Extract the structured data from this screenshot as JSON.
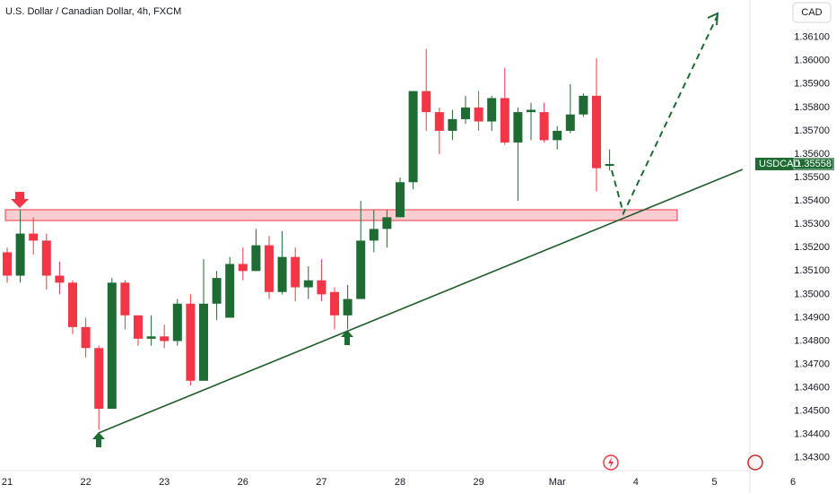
{
  "chart_data": {
    "type": "candlestick",
    "title": "U.S. Dollar / Canadian Dollar, 4h, FXCM",
    "currency": "CAD",
    "symbol": "USDCAD",
    "last_price": 1.35558,
    "up_color": "#1e6b34",
    "down_color": "#f23645",
    "grid": false,
    "categories": [
      "21",
      null,
      null,
      null,
      null,
      null,
      "22",
      null,
      null,
      null,
      null,
      null,
      "23",
      null,
      null,
      null,
      null,
      null,
      "26",
      null,
      null,
      null,
      null,
      null,
      "27",
      null,
      null,
      null,
      null,
      null,
      "28",
      null,
      null,
      null,
      null,
      null,
      "29",
      null,
      null,
      null,
      null,
      null,
      "Mar",
      null,
      null,
      null,
      null
    ],
    "future_categories": [
      "4",
      "5",
      "6"
    ],
    "open": [
      1.3518,
      1.3508,
      1.3526,
      1.3523,
      1.3508,
      1.3505,
      1.3486,
      1.3477,
      1.3451,
      1.3505,
      1.3491,
      1.3481,
      1.3482,
      1.348,
      1.3496,
      1.3463,
      1.3496,
      1.349,
      1.3513,
      1.351,
      1.3521,
      1.3501,
      1.3516,
      1.3503,
      1.3506,
      1.3501,
      1.3491,
      1.3498,
      1.3523,
      1.3528,
      1.3533,
      1.3548,
      1.3587,
      1.3578,
      1.357,
      1.3575,
      1.358,
      1.3574,
      1.3584,
      1.3565,
      1.3578,
      1.3578,
      1.3566,
      1.357,
      1.3577,
      1.3585,
      1.3555
    ],
    "high": [
      1.352,
      1.3536,
      1.3533,
      1.3526,
      1.3514,
      1.3506,
      1.349,
      1.3478,
      1.3507,
      1.3506,
      1.3491,
      1.3491,
      1.3487,
      1.3498,
      1.35,
      1.3515,
      1.351,
      1.3516,
      1.352,
      1.3528,
      1.3525,
      1.3527,
      1.352,
      1.3512,
      1.3515,
      1.3503,
      1.3504,
      1.354,
      1.3536,
      1.3536,
      1.355,
      1.3587,
      1.3605,
      1.358,
      1.3579,
      1.3585,
      1.3587,
      1.3585,
      1.3597,
      1.358,
      1.3582,
      1.3582,
      1.3572,
      1.359,
      1.3586,
      1.3601,
      1.3562
    ],
    "low": [
      1.3505,
      1.3505,
      1.3517,
      1.3502,
      1.35,
      1.3483,
      1.3473,
      1.3442,
      1.3451,
      1.3485,
      1.3478,
      1.3478,
      1.3477,
      1.3478,
      1.3461,
      1.3463,
      1.3489,
      1.349,
      1.3506,
      1.351,
      1.3498,
      1.35,
      1.3497,
      1.3498,
      1.3497,
      1.3485,
      1.3485,
      1.3498,
      1.3518,
      1.352,
      1.3533,
      1.3545,
      1.357,
      1.356,
      1.3566,
      1.3573,
      1.357,
      1.357,
      1.3564,
      1.354,
      1.3566,
      1.3565,
      1.3562,
      1.3569,
      1.3576,
      1.3544,
      1.3553
    ],
    "close": [
      1.3508,
      1.3526,
      1.3523,
      1.3508,
      1.3505,
      1.3486,
      1.3477,
      1.3451,
      1.3505,
      1.3491,
      1.3481,
      1.3482,
      1.348,
      1.3496,
      1.3463,
      1.3496,
      1.3507,
      1.3513,
      1.351,
      1.3521,
      1.3501,
      1.3516,
      1.3503,
      1.3506,
      1.35,
      1.3491,
      1.3498,
      1.3523,
      1.3528,
      1.3533,
      1.3548,
      1.3587,
      1.3578,
      1.357,
      1.3575,
      1.358,
      1.3574,
      1.3584,
      1.3565,
      1.3578,
      1.3579,
      1.3566,
      1.357,
      1.3577,
      1.3585,
      1.3554,
      1.35558
    ],
    "ylim": [
      1.3428,
      1.3626
    ],
    "yticks": [
      {
        "value": 1.343,
        "label": "1.34300"
      },
      {
        "value": 1.344,
        "label": "1.34400"
      },
      {
        "value": 1.345,
        "label": "1.34500"
      },
      {
        "value": 1.346,
        "label": "1.34600"
      },
      {
        "value": 1.347,
        "label": "1.34700"
      },
      {
        "value": 1.348,
        "label": "1.34800"
      },
      {
        "value": 1.349,
        "label": "1.34900"
      },
      {
        "value": 1.35,
        "label": "1.35000"
      },
      {
        "value": 1.351,
        "label": "1.35100"
      },
      {
        "value": 1.352,
        "label": "1.35200"
      },
      {
        "value": 1.353,
        "label": "1.35300"
      },
      {
        "value": 1.354,
        "label": "1.35400"
      },
      {
        "value": 1.355,
        "label": "1.35500"
      },
      {
        "value": 1.356,
        "label": "1.35600"
      },
      {
        "value": 1.357,
        "label": "1.35700"
      },
      {
        "value": 1.358,
        "label": "1.35800"
      },
      {
        "value": 1.359,
        "label": "1.35900"
      },
      {
        "value": 1.36,
        "label": "1.36000"
      },
      {
        "value": 1.361,
        "label": "1.36100"
      }
    ]
  }
}
